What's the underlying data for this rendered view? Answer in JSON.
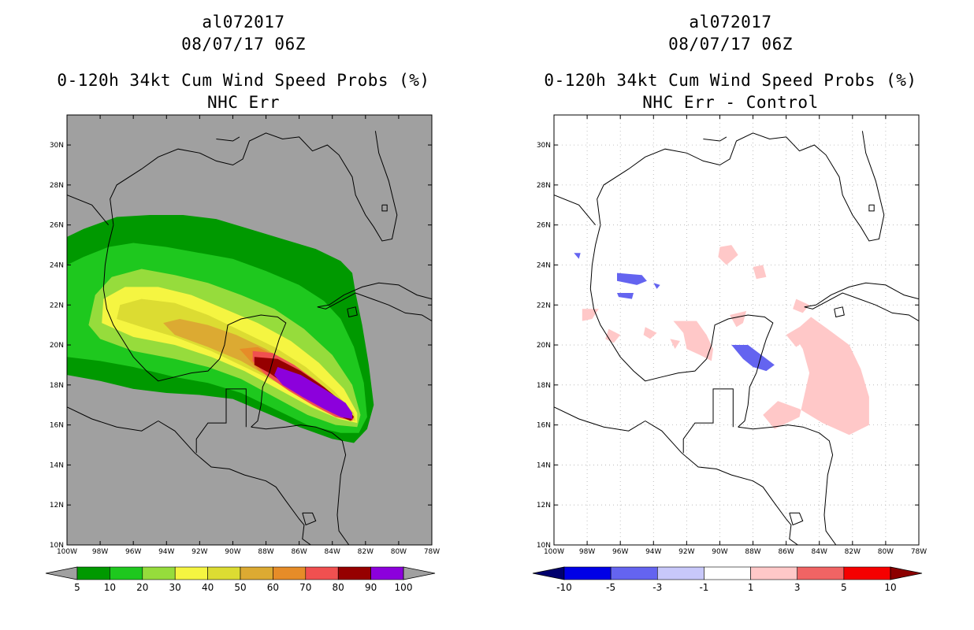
{
  "panels": [
    {
      "storm_id": "al072017",
      "datetime": "08/07/17 06Z",
      "title": "0-120h 34kt Cum Wind Speed Probs (%)",
      "subtitle": "NHC Err",
      "colorbar": {
        "labels": [
          "5",
          "10",
          "20",
          "30",
          "40",
          "50",
          "60",
          "70",
          "80",
          "90",
          "100"
        ],
        "colors": [
          "#a0a0a0",
          "#009900",
          "#1ec81e",
          "#96dc3c",
          "#f5f541",
          "#dcdc32",
          "#dcaa32",
          "#e68c28",
          "#f05050",
          "#960000",
          "#8c00dc",
          "#a0a0a0"
        ]
      }
    },
    {
      "storm_id": "al072017",
      "datetime": "08/07/17 06Z",
      "title": "0-120h 34kt Cum Wind Speed Probs (%)",
      "subtitle": "NHC Err - Control",
      "colorbar": {
        "labels": [
          "-10",
          "-5",
          "-3",
          "-1",
          "1",
          "3",
          "5",
          "10"
        ],
        "colors": [
          "#00006e",
          "#0000e6",
          "#6464f0",
          "#c8c8fa",
          "#ffffff",
          "#ffc8c8",
          "#f06464",
          "#f50000",
          "#8c0000"
        ]
      }
    }
  ],
  "map": {
    "lat_labels": [
      "30N",
      "28N",
      "26N",
      "24N",
      "22N",
      "20N",
      "18N",
      "16N",
      "14N",
      "12N",
      "10N"
    ],
    "lon_labels": [
      "100W",
      "98W",
      "96W",
      "94W",
      "92W",
      "90W",
      "88W",
      "86W",
      "84W",
      "82W",
      "80W",
      "78W"
    ],
    "left_background": "#a0a0a0",
    "right_background": "#ffffff",
    "gridline_color": "#b0b0b0"
  }
}
